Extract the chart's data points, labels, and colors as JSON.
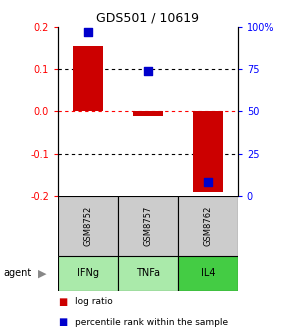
{
  "title": "GDS501 / 10619",
  "samples": [
    "GSM8752",
    "GSM8757",
    "GSM8762"
  ],
  "agents": [
    "IFNg",
    "TNFa",
    "IL4"
  ],
  "log_ratios": [
    0.155,
    -0.01,
    -0.19
  ],
  "percentile_ranks": [
    97,
    74,
    8
  ],
  "bar_color": "#cc0000",
  "dot_color": "#0000cc",
  "ylim_left": [
    -0.2,
    0.2
  ],
  "ylim_right": [
    0,
    100
  ],
  "yticks_left": [
    -0.2,
    -0.1,
    0.0,
    0.1,
    0.2
  ],
  "yticks_right": [
    0,
    25,
    50,
    75,
    100
  ],
  "ytick_labels_right": [
    "0",
    "25",
    "50",
    "75",
    "100%"
  ],
  "grid_values": [
    -0.1,
    0.0,
    0.1
  ],
  "sample_bg": "#cccccc",
  "agent_colors": [
    "#aaeaaa",
    "#aaeaaa",
    "#44cc44"
  ],
  "legend_log_color": "#cc0000",
  "legend_pct_color": "#0000cc",
  "bar_width": 0.5,
  "dot_size": 30
}
